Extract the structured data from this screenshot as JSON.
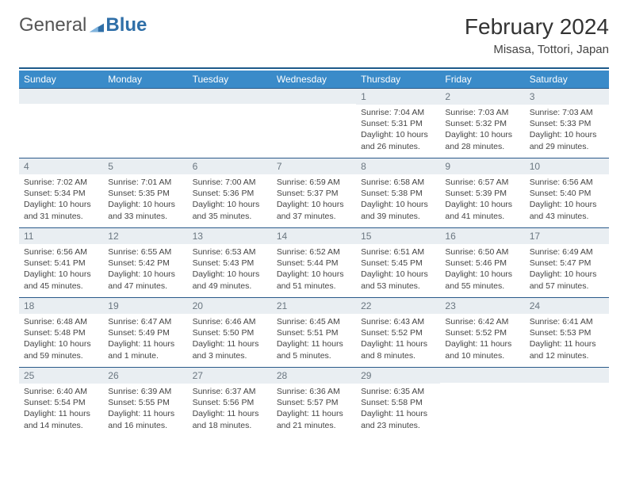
{
  "brand": {
    "general": "General",
    "blue": "Blue"
  },
  "header": {
    "month_title": "February 2024",
    "location": "Misasa, Tottori, Japan"
  },
  "colors": {
    "header_bg": "#3a8bc9",
    "divider": "#1d5a8a",
    "day_number_bg": "#e9eef2",
    "day_number_fg": "#6a7680",
    "logo_blue": "#2f6fa8"
  },
  "weekday_labels": [
    "Sunday",
    "Monday",
    "Tuesday",
    "Wednesday",
    "Thursday",
    "Friday",
    "Saturday"
  ],
  "weeks": [
    [
      null,
      null,
      null,
      null,
      {
        "n": "1",
        "sr": "Sunrise: 7:04 AM",
        "ss": "Sunset: 5:31 PM",
        "dl": "Daylight: 10 hours and 26 minutes."
      },
      {
        "n": "2",
        "sr": "Sunrise: 7:03 AM",
        "ss": "Sunset: 5:32 PM",
        "dl": "Daylight: 10 hours and 28 minutes."
      },
      {
        "n": "3",
        "sr": "Sunrise: 7:03 AM",
        "ss": "Sunset: 5:33 PM",
        "dl": "Daylight: 10 hours and 29 minutes."
      }
    ],
    [
      {
        "n": "4",
        "sr": "Sunrise: 7:02 AM",
        "ss": "Sunset: 5:34 PM",
        "dl": "Daylight: 10 hours and 31 minutes."
      },
      {
        "n": "5",
        "sr": "Sunrise: 7:01 AM",
        "ss": "Sunset: 5:35 PM",
        "dl": "Daylight: 10 hours and 33 minutes."
      },
      {
        "n": "6",
        "sr": "Sunrise: 7:00 AM",
        "ss": "Sunset: 5:36 PM",
        "dl": "Daylight: 10 hours and 35 minutes."
      },
      {
        "n": "7",
        "sr": "Sunrise: 6:59 AM",
        "ss": "Sunset: 5:37 PM",
        "dl": "Daylight: 10 hours and 37 minutes."
      },
      {
        "n": "8",
        "sr": "Sunrise: 6:58 AM",
        "ss": "Sunset: 5:38 PM",
        "dl": "Daylight: 10 hours and 39 minutes."
      },
      {
        "n": "9",
        "sr": "Sunrise: 6:57 AM",
        "ss": "Sunset: 5:39 PM",
        "dl": "Daylight: 10 hours and 41 minutes."
      },
      {
        "n": "10",
        "sr": "Sunrise: 6:56 AM",
        "ss": "Sunset: 5:40 PM",
        "dl": "Daylight: 10 hours and 43 minutes."
      }
    ],
    [
      {
        "n": "11",
        "sr": "Sunrise: 6:56 AM",
        "ss": "Sunset: 5:41 PM",
        "dl": "Daylight: 10 hours and 45 minutes."
      },
      {
        "n": "12",
        "sr": "Sunrise: 6:55 AM",
        "ss": "Sunset: 5:42 PM",
        "dl": "Daylight: 10 hours and 47 minutes."
      },
      {
        "n": "13",
        "sr": "Sunrise: 6:53 AM",
        "ss": "Sunset: 5:43 PM",
        "dl": "Daylight: 10 hours and 49 minutes."
      },
      {
        "n": "14",
        "sr": "Sunrise: 6:52 AM",
        "ss": "Sunset: 5:44 PM",
        "dl": "Daylight: 10 hours and 51 minutes."
      },
      {
        "n": "15",
        "sr": "Sunrise: 6:51 AM",
        "ss": "Sunset: 5:45 PM",
        "dl": "Daylight: 10 hours and 53 minutes."
      },
      {
        "n": "16",
        "sr": "Sunrise: 6:50 AM",
        "ss": "Sunset: 5:46 PM",
        "dl": "Daylight: 10 hours and 55 minutes."
      },
      {
        "n": "17",
        "sr": "Sunrise: 6:49 AM",
        "ss": "Sunset: 5:47 PM",
        "dl": "Daylight: 10 hours and 57 minutes."
      }
    ],
    [
      {
        "n": "18",
        "sr": "Sunrise: 6:48 AM",
        "ss": "Sunset: 5:48 PM",
        "dl": "Daylight: 10 hours and 59 minutes."
      },
      {
        "n": "19",
        "sr": "Sunrise: 6:47 AM",
        "ss": "Sunset: 5:49 PM",
        "dl": "Daylight: 11 hours and 1 minute."
      },
      {
        "n": "20",
        "sr": "Sunrise: 6:46 AM",
        "ss": "Sunset: 5:50 PM",
        "dl": "Daylight: 11 hours and 3 minutes."
      },
      {
        "n": "21",
        "sr": "Sunrise: 6:45 AM",
        "ss": "Sunset: 5:51 PM",
        "dl": "Daylight: 11 hours and 5 minutes."
      },
      {
        "n": "22",
        "sr": "Sunrise: 6:43 AM",
        "ss": "Sunset: 5:52 PM",
        "dl": "Daylight: 11 hours and 8 minutes."
      },
      {
        "n": "23",
        "sr": "Sunrise: 6:42 AM",
        "ss": "Sunset: 5:52 PM",
        "dl": "Daylight: 11 hours and 10 minutes."
      },
      {
        "n": "24",
        "sr": "Sunrise: 6:41 AM",
        "ss": "Sunset: 5:53 PM",
        "dl": "Daylight: 11 hours and 12 minutes."
      }
    ],
    [
      {
        "n": "25",
        "sr": "Sunrise: 6:40 AM",
        "ss": "Sunset: 5:54 PM",
        "dl": "Daylight: 11 hours and 14 minutes."
      },
      {
        "n": "26",
        "sr": "Sunrise: 6:39 AM",
        "ss": "Sunset: 5:55 PM",
        "dl": "Daylight: 11 hours and 16 minutes."
      },
      {
        "n": "27",
        "sr": "Sunrise: 6:37 AM",
        "ss": "Sunset: 5:56 PM",
        "dl": "Daylight: 11 hours and 18 minutes."
      },
      {
        "n": "28",
        "sr": "Sunrise: 6:36 AM",
        "ss": "Sunset: 5:57 PM",
        "dl": "Daylight: 11 hours and 21 minutes."
      },
      {
        "n": "29",
        "sr": "Sunrise: 6:35 AM",
        "ss": "Sunset: 5:58 PM",
        "dl": "Daylight: 11 hours and 23 minutes."
      },
      null,
      null
    ]
  ]
}
